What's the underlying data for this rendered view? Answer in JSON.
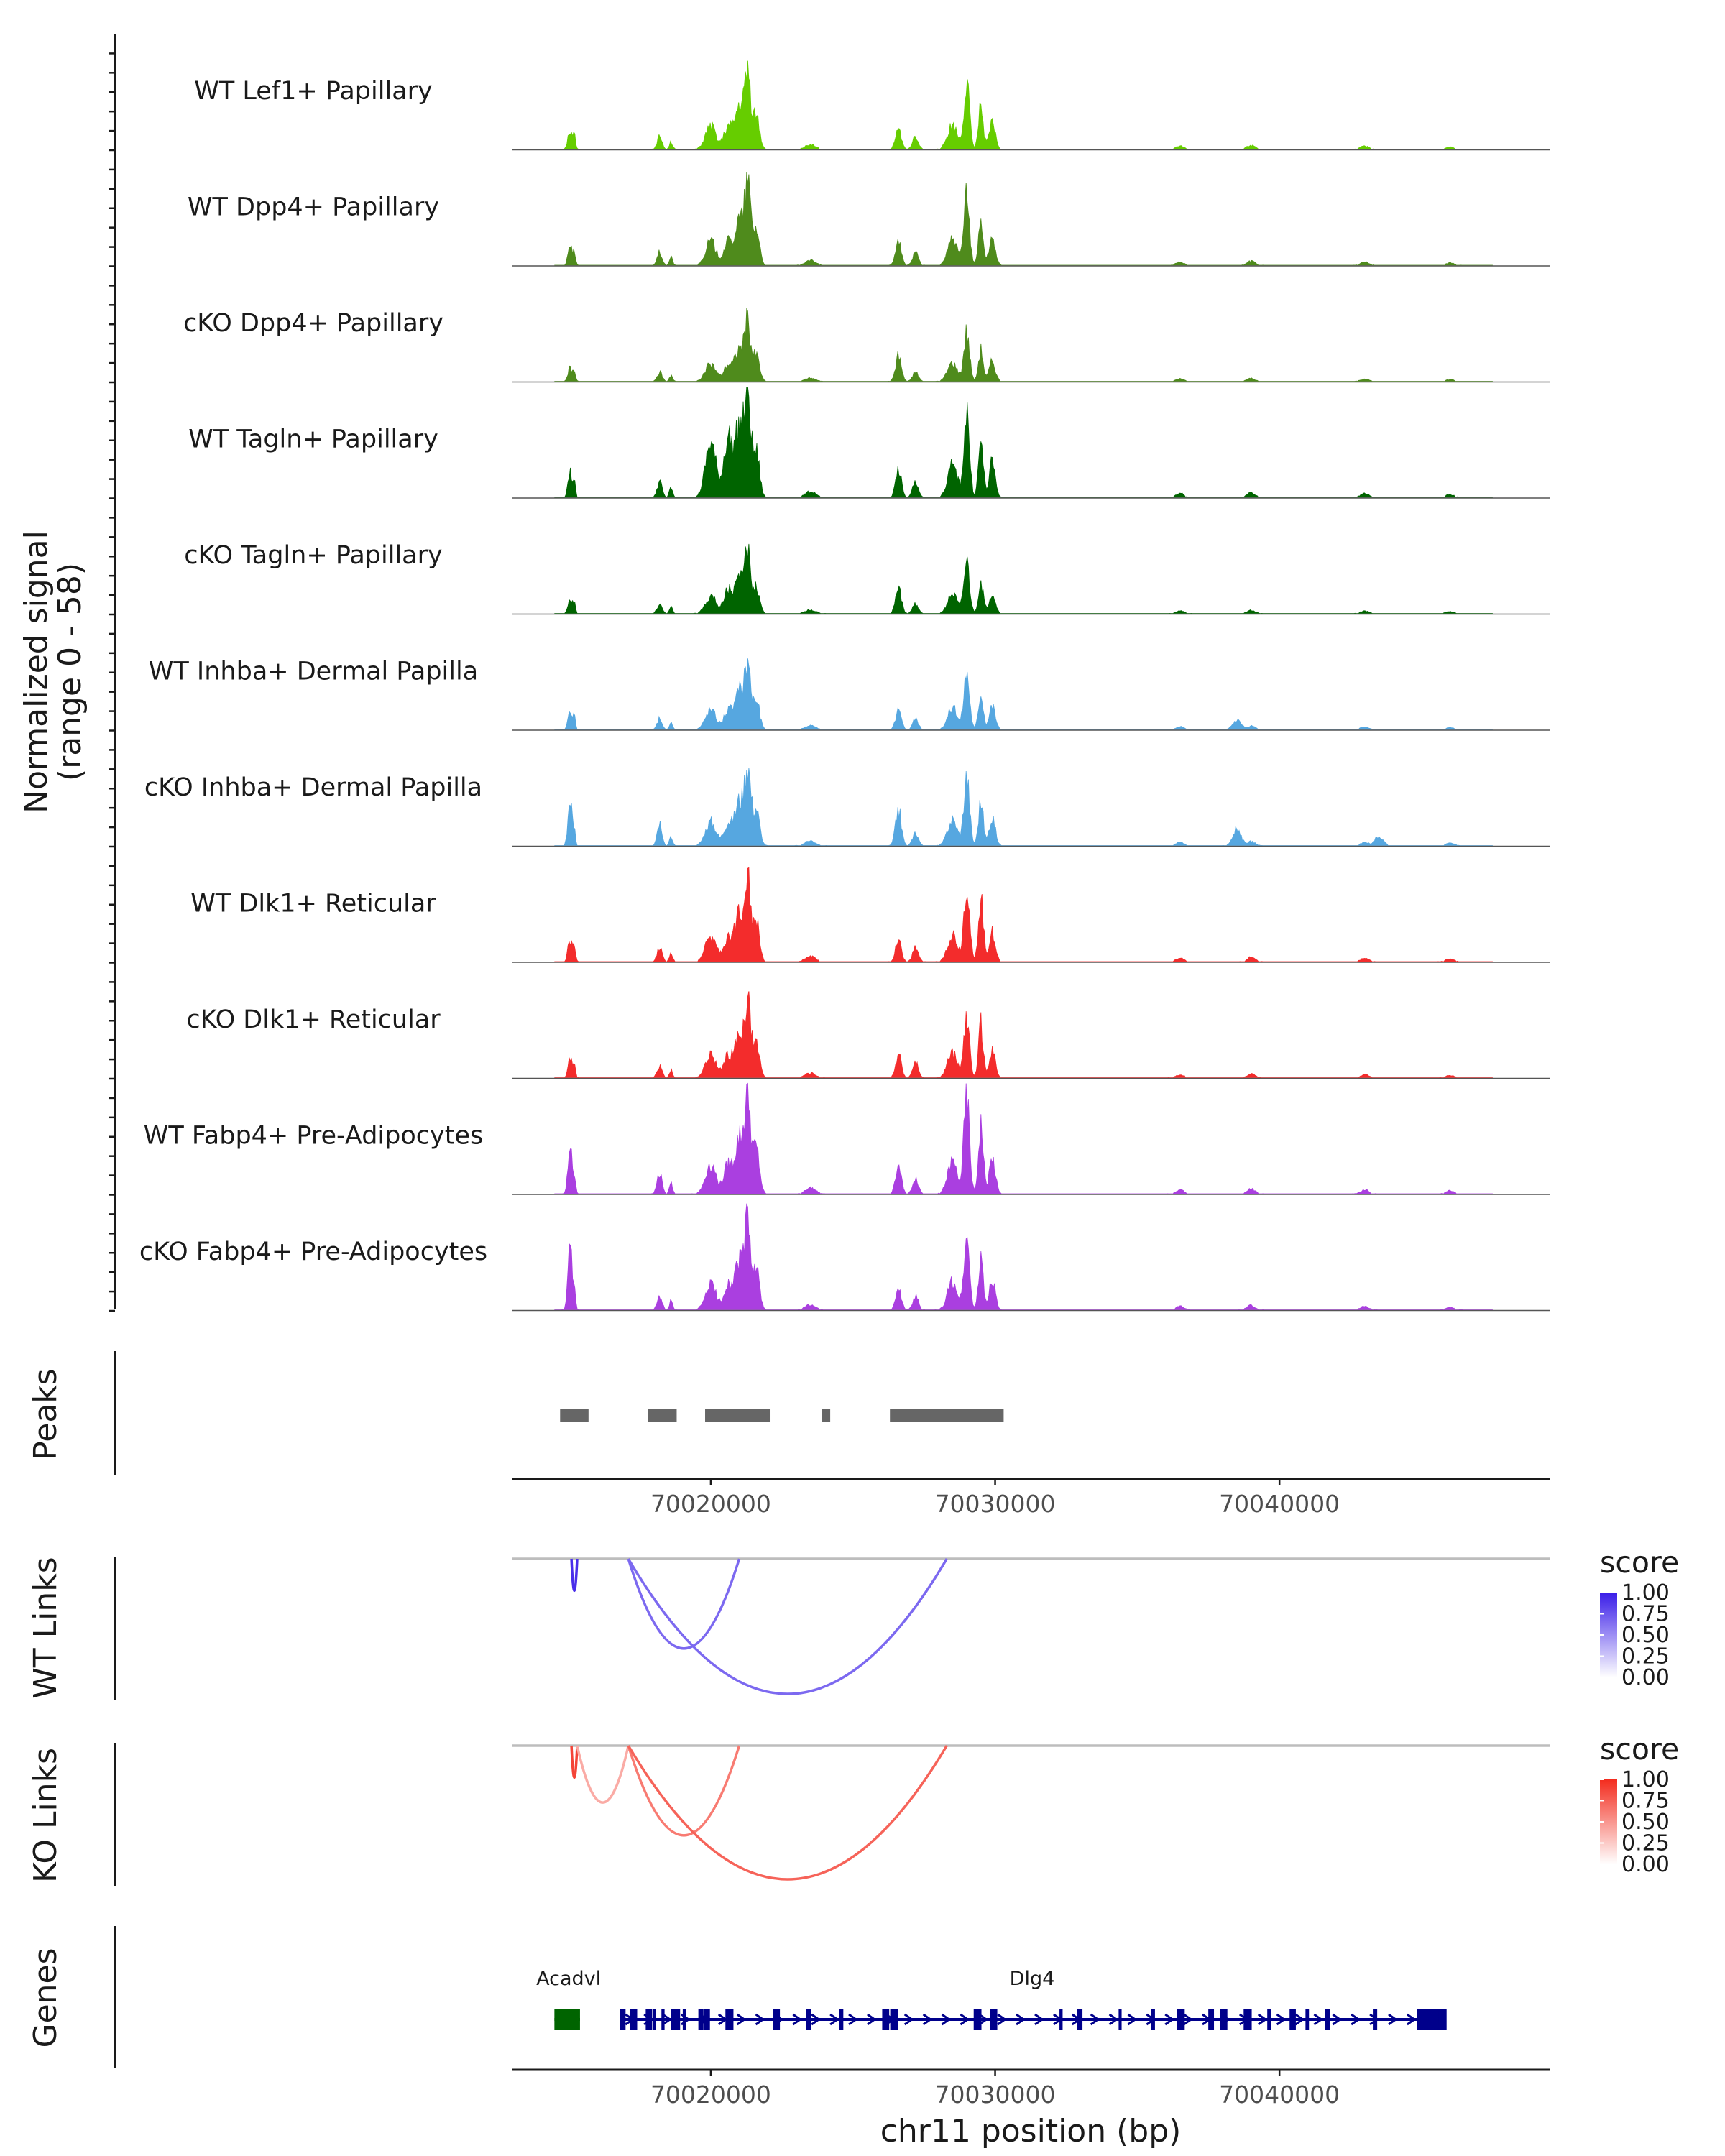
{
  "chart_data": {
    "type": "coverage",
    "chromosome": "chr11",
    "x_range": [
      70013000,
      70049500
    ],
    "xlabel": "chr11 position (bp)",
    "ylabel_coverage": "Normalized signal",
    "ylabel_coverage_range": "(range 0 - 58)",
    "ylim": [
      0,
      58
    ],
    "x_ticks": [
      70020000,
      70030000,
      70040000
    ],
    "x_tick_labels": [
      "70020000",
      "70030000",
      "70040000"
    ],
    "tracks": [
      {
        "name": "WT Lef1+ Papillary",
        "color": "#66CD00",
        "height_scale": 0.95
      },
      {
        "name": "WT Dpp4+ Papillary",
        "color": "#4F8B1C",
        "height_scale": 1.0
      },
      {
        "name": "cKO Dpp4+ Papillary",
        "color": "#4F8B1C",
        "height_scale": 0.72
      },
      {
        "name": "WT Tagln+ Papillary",
        "color": "#006400",
        "height_scale": 1.25
      },
      {
        "name": "cKO Tagln+ Papillary",
        "color": "#006400",
        "height_scale": 0.75
      },
      {
        "name": "WT Inhba+ Dermal Papilla",
        "color": "#56A7E0",
        "height_scale": 0.85
      },
      {
        "name": "cKO Inhba+ Dermal Papilla",
        "color": "#56A7E0",
        "height_scale": 1.0
      },
      {
        "name": "WT Dlk1+ Reticular",
        "color": "#F32C2C",
        "height_scale": 1.1
      },
      {
        "name": "cKO Dlk1+ Reticular",
        "color": "#F32C2C",
        "height_scale": 0.95
      },
      {
        "name": "WT Fabp4+ Pre-Adipocytes",
        "color": "#AA3FE0",
        "height_scale": 1.25
      },
      {
        "name": "cKO Fabp4+ Pre-Adipocytes",
        "color": "#AA3FE0",
        "height_scale": 1.1
      }
    ],
    "peaks_label": "Peaks",
    "peaks": [
      [
        70014700,
        70015700
      ],
      [
        70017800,
        70018800
      ],
      [
        70019800,
        70022100
      ],
      [
        70023900,
        70024200
      ],
      [
        70026300,
        70030300
      ]
    ],
    "links": [
      {
        "panel": "WT Links",
        "legend_title": "score",
        "color_high": "#3A1DE8",
        "color_low": "#FFFFFF",
        "arcs": [
          {
            "start": 70015100,
            "end": 70015300,
            "score": 0.9
          },
          {
            "start": 70017100,
            "end": 70021000,
            "score": 0.55
          },
          {
            "start": 70017100,
            "end": 70028300,
            "score": 0.55
          }
        ]
      },
      {
        "panel": "KO Links",
        "legend_title": "score",
        "color_high": "#F32C1E",
        "color_low": "#FFFFFF",
        "arcs": [
          {
            "start": 70015100,
            "end": 70015300,
            "score": 0.85
          },
          {
            "start": 70015300,
            "end": 70017100,
            "score": 0.2
          },
          {
            "start": 70017100,
            "end": 70021000,
            "score": 0.5
          },
          {
            "start": 70017100,
            "end": 70028300,
            "score": 0.65
          }
        ]
      }
    ],
    "legend_ticks": [
      "1.00",
      "0.75",
      "0.50",
      "0.25",
      "0.00"
    ],
    "genes_label": "Genes",
    "genes": [
      {
        "name": "Acadvl",
        "start": 70014500,
        "end": 70015400,
        "strand": "-",
        "color": "#006400",
        "label_x": 70015000
      },
      {
        "name": "Dlg4",
        "start": 70016800,
        "end": 70045600,
        "strand": "+",
        "color": "#00008B",
        "label_x": 70031300
      }
    ]
  }
}
